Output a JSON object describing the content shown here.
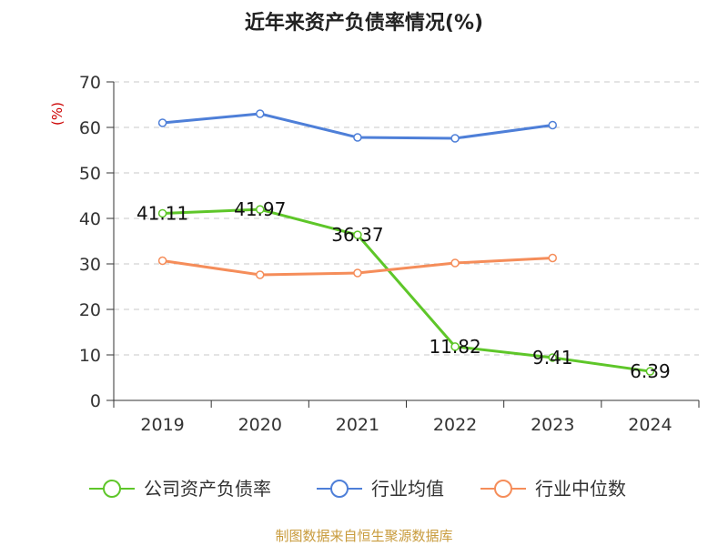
{
  "chart_data": {
    "type": "line",
    "title": "近年来资产负债率情况(%)",
    "ylabel": "(%)",
    "ylim": [
      0,
      70
    ],
    "yticks": [
      0,
      10,
      20,
      30,
      40,
      50,
      60,
      70
    ],
    "categories": [
      "2019",
      "2020",
      "2021",
      "2022",
      "2023",
      "2024"
    ],
    "grid": true,
    "legend_position": "bottom",
    "series": [
      {
        "name": "公司资产负债率",
        "color": "#5ec629",
        "values": [
          41.11,
          41.97,
          36.37,
          11.82,
          9.41,
          6.39
        ],
        "labels": [
          "41.11",
          "41.97",
          "36.37",
          "11.82",
          "9.41",
          "6.39"
        ]
      },
      {
        "name": "行业均值",
        "color": "#4e7fd8",
        "values": [
          61.0,
          63.0,
          57.8,
          57.6,
          60.5,
          null
        ]
      },
      {
        "name": "行业中位数",
        "color": "#f58d5a",
        "values": [
          30.7,
          27.6,
          28.0,
          30.2,
          31.3,
          null
        ]
      }
    ],
    "source": "制图数据来自恒生聚源数据库"
  }
}
